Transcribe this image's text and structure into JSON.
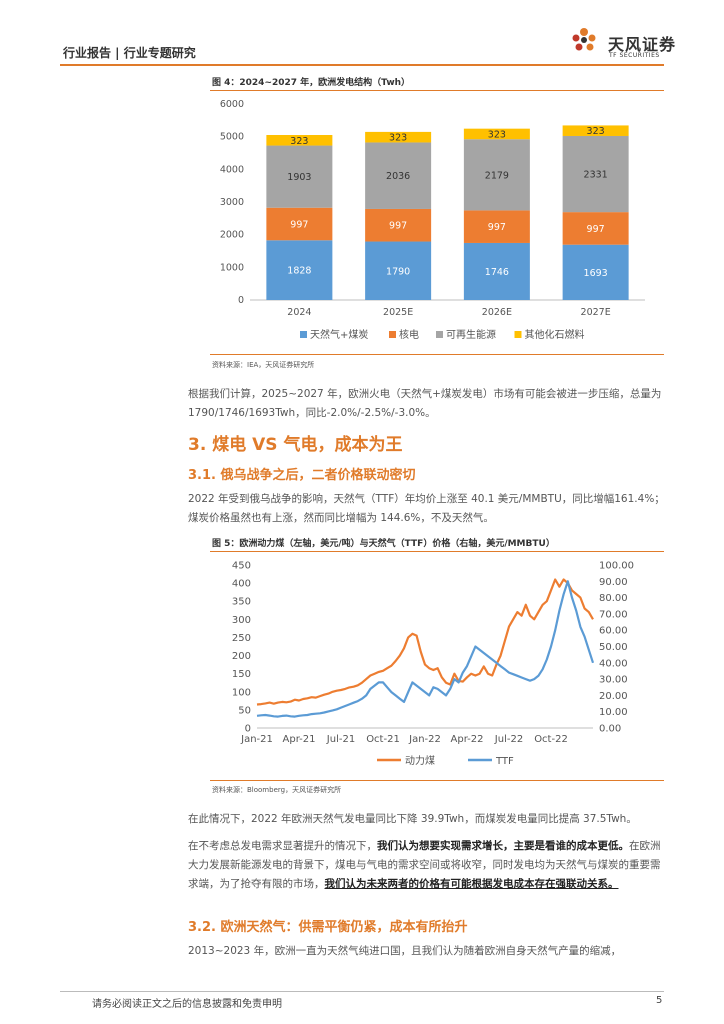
{
  "header": {
    "left": "行业报告 | 行业专题研究",
    "logo_cn": "天风证券",
    "logo_en": "TF SECURITIES"
  },
  "fig4": {
    "title": "图 4：2024~2027 年，欧洲发电结构（Twh）",
    "source": "资料来源：IEA，天风证券研究所"
  },
  "fig5": {
    "title": "图 5：欧洲动力煤（左轴，美元/吨）与天然气（TTF）价格（右轴，美元/MMBTU）",
    "source": "资料来源：Bloomberg，天风证券研究所"
  },
  "colors": {
    "accent": "#e07b2a",
    "blue": "#5b9bd5",
    "orange": "#ed7d31",
    "gray": "#a5a5a5",
    "yellow": "#ffc000"
  },
  "chart_data": [
    {
      "type": "bar",
      "stacked": true,
      "title": "2024~2027 年，欧洲发电结构（Twh）",
      "categories": [
        "2024",
        "2025E",
        "2026E",
        "2027E"
      ],
      "ylim": [
        0,
        6000
      ],
      "yticks": [
        "0",
        "1000",
        "2000",
        "3000",
        "4000",
        "5000",
        "6000"
      ],
      "series": [
        {
          "name": "天然气+煤炭",
          "values": [
            1828,
            1790,
            1746,
            1693
          ]
        },
        {
          "name": "核电",
          "values": [
            997,
            997,
            997,
            997
          ]
        },
        {
          "name": "可再生能源",
          "values": [
            1903,
            2036,
            2179,
            2331
          ]
        },
        {
          "name": "其他化石燃料",
          "values": [
            323,
            323,
            323,
            323
          ]
        }
      ],
      "legend_position": "bottom"
    },
    {
      "type": "line",
      "title": "欧洲动力煤与天然气（TTF）价格",
      "x_ticks": [
        "Jan-21",
        "Apr-21",
        "Jul-21",
        "Oct-21",
        "Jan-22",
        "Apr-22",
        "Jul-22",
        "Oct-22"
      ],
      "y_left": {
        "ylim": [
          0,
          450
        ],
        "ticks": [
          "0",
          "50",
          "100",
          "150",
          "200",
          "250",
          "300",
          "350",
          "400",
          "450"
        ]
      },
      "y_right": {
        "ylim": [
          0,
          100
        ],
        "ticks": [
          "0.00",
          "10.00",
          "20.00",
          "30.00",
          "40.00",
          "50.00",
          "60.00",
          "70.00",
          "80.00",
          "90.00",
          "100.00"
        ]
      },
      "series": [
        {
          "name": "动力煤",
          "axis": "left",
          "x": [
            0,
            0.3,
            0.6,
            0.9,
            1.2,
            1.5,
            1.8,
            2.1,
            2.4,
            2.7,
            3,
            3.3,
            3.6,
            3.9,
            4.2,
            4.5,
            4.8,
            5.1,
            5.4,
            5.7,
            6,
            6.3,
            6.6,
            6.9,
            7.2,
            7.5,
            7.8,
            8.1,
            8.4,
            8.7,
            9,
            9.3,
            9.6,
            9.9,
            10.2,
            10.5,
            10.8,
            11.1,
            11.4,
            11.7,
            12,
            12.3,
            12.6,
            12.9,
            13.2,
            13.5,
            13.8,
            14.1,
            14.4,
            14.7,
            15,
            15.3,
            15.6,
            15.9,
            16.2,
            16.5,
            16.8,
            17.1,
            17.4,
            17.7,
            18,
            18.3,
            18.6,
            18.9,
            19.2,
            19.5,
            19.8,
            20.1,
            20.4,
            20.7,
            21,
            21.3,
            21.6,
            21.9,
            22.2,
            22.5,
            22.8,
            23.1,
            23.4,
            23.7,
            24
          ],
          "values": [
            65,
            66,
            68,
            70,
            67,
            70,
            72,
            71,
            73,
            78,
            76,
            80,
            82,
            85,
            84,
            88,
            92,
            95,
            100,
            103,
            105,
            108,
            112,
            114,
            118,
            125,
            135,
            145,
            150,
            155,
            158,
            165,
            172,
            185,
            200,
            220,
            250,
            260,
            255,
            210,
            175,
            165,
            160,
            165,
            140,
            125,
            120,
            150,
            130,
            128,
            140,
            150,
            145,
            150,
            170,
            150,
            145,
            175,
            200,
            240,
            280,
            300,
            320,
            310,
            340,
            310,
            300,
            320,
            340,
            350,
            380,
            410,
            390,
            410,
            400,
            380,
            370,
            360,
            330,
            320,
            300
          ],
          "note": "approximate trace"
        },
        {
          "name": "TTF",
          "axis": "right",
          "x": [
            0,
            0.3,
            0.6,
            0.9,
            1.2,
            1.5,
            1.8,
            2.1,
            2.4,
            2.7,
            3,
            3.3,
            3.6,
            3.9,
            4.2,
            4.5,
            4.8,
            5.1,
            5.4,
            5.7,
            6,
            6.3,
            6.6,
            6.9,
            7.2,
            7.5,
            7.8,
            8.1,
            8.4,
            8.7,
            9,
            9.3,
            9.6,
            9.9,
            10.2,
            10.5,
            10.8,
            11.1,
            11.4,
            11.7,
            12,
            12.3,
            12.6,
            12.9,
            13.2,
            13.5,
            13.8,
            14.1,
            14.4,
            14.7,
            15,
            15.3,
            15.6,
            15.9,
            16.2,
            16.5,
            16.8,
            17.1,
            17.4,
            17.7,
            18,
            18.3,
            18.6,
            18.9,
            19.2,
            19.5,
            19.8,
            20.1,
            20.4,
            20.7,
            21,
            21.3,
            21.6,
            21.9,
            22.2,
            22.5,
            22.8,
            23.1,
            23.4,
            23.7,
            24
          ],
          "values": [
            7.5,
            7.8,
            8.0,
            7.6,
            7.2,
            7.0,
            7.4,
            7.6,
            7.2,
            7.0,
            7.5,
            7.8,
            8.0,
            8.5,
            8.8,
            9.0,
            9.5,
            10.2,
            10.8,
            11.5,
            12.5,
            13.5,
            14.5,
            15.5,
            16.5,
            18.0,
            20.0,
            24.0,
            26.0,
            28.0,
            28.0,
            25.0,
            22.0,
            20.0,
            18.0,
            16.0,
            22.0,
            28.0,
            26.0,
            24.0,
            22.0,
            20.0,
            25.0,
            24.0,
            22.0,
            20.0,
            24.0,
            30.0,
            28.0,
            34.0,
            38.0,
            44.0,
            50.0,
            48.0,
            46.0,
            44.0,
            42.0,
            40.0,
            38.0,
            36.0,
            34.0,
            33.0,
            32.0,
            31.0,
            30.0,
            29.0,
            30.0,
            32.0,
            36.0,
            42.0,
            50.0,
            60.0,
            72.0,
            82.0,
            90.0,
            80.0,
            72.0,
            62.0,
            56.0,
            48.0,
            40.0
          ],
          "note": "approximate trace"
        }
      ],
      "legend_position": "bottom"
    }
  ],
  "text": {
    "p1": "根据我们计算，2025~2027 年，欧洲火电（天然气+煤炭发电）市场有可能会被进一步压缩，总量为 1790/1746/1693Twh，同比-2.0%/-2.5%/-3.0%。",
    "h3_section": "3. 煤电 VS 气电，成本为王",
    "h31": "3.1. 俄乌战争之后，二者价格联动密切",
    "p2": "2022 年受到俄乌战争的影响，天然气（TTF）年均价上涨至 40.1 美元/MMBTU，同比增幅161.4%；煤炭价格虽然也有上涨，然而同比增幅为 144.6%，不及天然气。",
    "p3": "在此情况下，2022 年欧洲天然气发电量同比下降 39.9Twh，而煤炭发电量同比提高 37.5Twh。",
    "p4_a": "在不考虑总发电需求显著提升的情况下，",
    "p4_b": "我们认为想要实现需求增长，主要是看谁的成本更低。",
    "p4_c": "在欧洲大力发展新能源发电的背景下，煤电与气电的需求空间或将收窄，同时发电均为天然气与煤炭的重要需求端，为了抢夺有限的市场，",
    "p4_d": "我们认为未来两者的价格有可能根据发电成本存在强联动关系。",
    "h32": "3.2. 欧洲天然气：供需平衡仍紧，成本有所抬升",
    "p5": "2013~2023 年，欧洲一直为天然气纯进口国，且我们认为随着欧洲自身天然气产量的缩减，"
  },
  "footer": {
    "text": "请务必阅读正文之后的信息披露和免责申明",
    "page": "5"
  }
}
